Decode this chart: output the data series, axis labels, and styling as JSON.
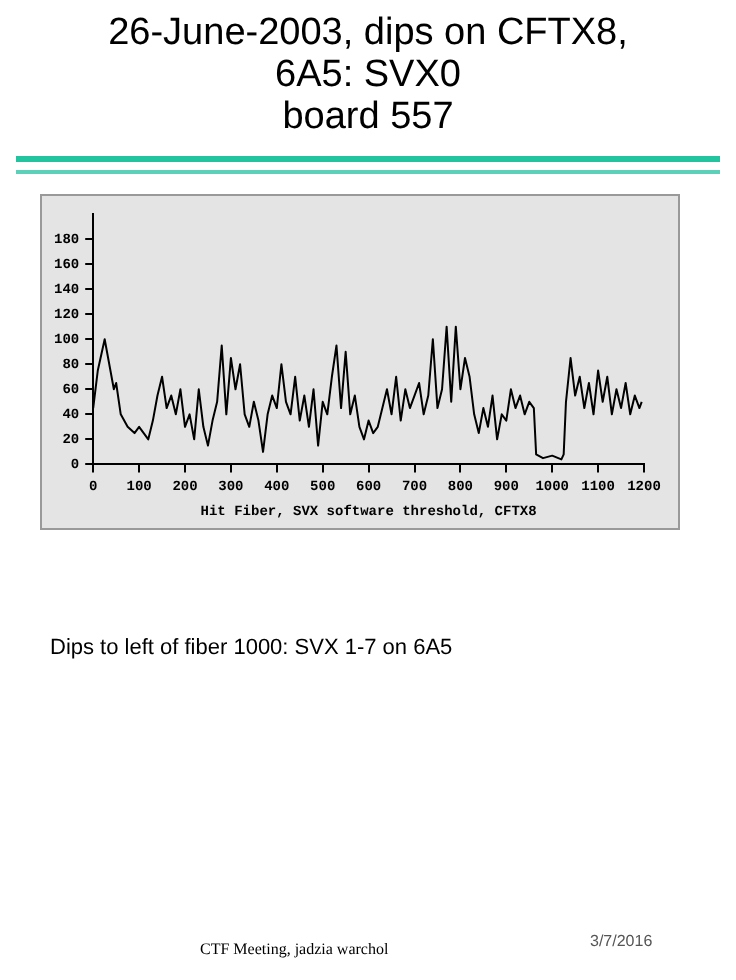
{
  "chart_data": {
    "type": "line",
    "title": "26-June-2003, dips on CFTX8,\n6A5: SVX0\nboard 557",
    "xlabel": "Hit Fiber, SVX software threshold, CFTX8",
    "annotations": [
      "Dips to left of fiber 1000: SVX 1-7 on 6A5",
      "CTF Meeting, jadzia warchol",
      "3/7/2016"
    ],
    "series": [
      {
        "color": "#000000",
        "x": [
          0,
          10,
          25,
          45,
          50,
          60,
          75,
          90,
          100,
          110,
          120,
          130,
          140,
          150,
          160,
          170,
          180,
          190,
          200,
          210,
          220,
          230,
          240,
          250,
          260,
          270,
          280,
          290,
          300,
          310,
          320,
          330,
          340,
          350,
          360,
          370,
          380,
          390,
          400,
          410,
          420,
          430,
          440,
          450,
          460,
          470,
          480,
          490,
          500,
          510,
          520,
          530,
          540,
          550,
          560,
          570,
          580,
          590,
          600,
          610,
          620,
          630,
          640,
          650,
          660,
          670,
          680,
          690,
          700,
          710,
          720,
          730,
          740,
          750,
          760,
          770,
          780,
          790,
          800,
          810,
          820,
          830,
          840,
          850,
          860,
          870,
          880,
          890,
          900,
          910,
          920,
          930,
          940,
          950,
          960,
          965,
          980,
          1000,
          1020,
          1025,
          1030,
          1040,
          1050,
          1060,
          1070,
          1080,
          1090,
          1100,
          1110,
          1120,
          1130,
          1140,
          1150,
          1160,
          1170,
          1180,
          1190,
          1195
        ],
        "values": [
          45,
          75,
          100,
          60,
          65,
          40,
          30,
          25,
          30,
          25,
          20,
          35,
          55,
          70,
          45,
          55,
          40,
          60,
          30,
          40,
          20,
          60,
          30,
          15,
          35,
          50,
          95,
          40,
          85,
          60,
          80,
          40,
          30,
          50,
          35,
          10,
          40,
          55,
          45,
          80,
          50,
          40,
          70,
          35,
          55,
          30,
          60,
          15,
          50,
          40,
          70,
          95,
          45,
          90,
          40,
          55,
          30,
          20,
          35,
          25,
          30,
          45,
          60,
          40,
          70,
          35,
          60,
          45,
          55,
          65,
          40,
          55,
          100,
          45,
          60,
          110,
          50,
          110,
          60,
          85,
          70,
          40,
          25,
          45,
          30,
          55,
          20,
          40,
          35,
          60,
          45,
          55,
          40,
          50,
          45,
          8,
          5,
          7,
          4,
          8,
          50,
          85,
          55,
          70,
          45,
          65,
          40,
          75,
          50,
          70,
          40,
          60,
          45,
          65,
          40,
          55,
          45,
          50
        ]
      }
    ],
    "xlim": [
      0,
      1200
    ],
    "xticks": [
      0,
      100,
      200,
      300,
      400,
      500,
      600,
      700,
      800,
      900,
      1000,
      1100,
      1200
    ],
    "ylim": [
      0,
      200
    ],
    "yticks": [
      0,
      20,
      40,
      60,
      80,
      100,
      120,
      140,
      160,
      180
    ],
    "grid": false,
    "legend": false,
    "marker": "none",
    "line_style": "solid"
  }
}
